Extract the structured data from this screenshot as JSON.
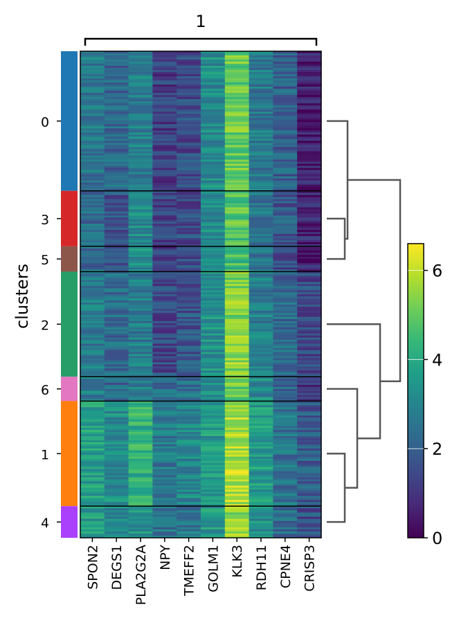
{
  "chart_data": {
    "type": "heatmap",
    "title": "",
    "ylabel": "clusters",
    "gene_group_label": "1",
    "genes": [
      "SPON2",
      "DEGS1",
      "PLA2G2A",
      "NPY",
      "TMEFF2",
      "GOLM1",
      "KLK3",
      "RDH11",
      "CPNE4",
      "CRISP3"
    ],
    "clusters": [
      {
        "label": "0",
        "color": "#1f77b4",
        "fraction": 0.287,
        "means": [
          2.6,
          2.2,
          2.8,
          1.2,
          1.5,
          3.2,
          5.0,
          2.7,
          2.0,
          0.5
        ]
      },
      {
        "label": "3",
        "color": "#d62728",
        "fraction": 0.114,
        "means": [
          2.3,
          1.8,
          3.2,
          1.4,
          1.6,
          3.1,
          4.8,
          2.6,
          1.8,
          0.6
        ]
      },
      {
        "label": "5",
        "color": "#8c564b",
        "fraction": 0.052,
        "means": [
          2.3,
          1.8,
          3.3,
          1.2,
          1.5,
          3.1,
          4.6,
          2.5,
          1.6,
          0.6
        ]
      },
      {
        "label": "2",
        "color": "#279e68",
        "fraction": 0.216,
        "means": [
          2.7,
          2.3,
          2.8,
          1.5,
          1.7,
          3.3,
          5.4,
          2.8,
          2.3,
          1.5
        ]
      },
      {
        "label": "6",
        "color": "#e377c2",
        "fraction": 0.05,
        "means": [
          2.8,
          2.2,
          2.6,
          2.3,
          2.4,
          3.3,
          5.0,
          3.2,
          2.3,
          0.9
        ]
      },
      {
        "label": "1",
        "color": "#ff7f0e",
        "fraction": 0.216,
        "means": [
          3.7,
          3.2,
          4.2,
          2.7,
          3.0,
          3.6,
          5.8,
          3.6,
          2.5,
          1.9
        ]
      },
      {
        "label": "4",
        "color": "#aa40fc",
        "fraction": 0.065,
        "means": [
          3.6,
          3.0,
          3.4,
          2.5,
          2.7,
          3.5,
          5.4,
          3.3,
          2.3,
          1.6
        ]
      }
    ],
    "colorbar": {
      "min": 0,
      "max": 6.6,
      "ticks": [
        0,
        2,
        4,
        6
      ],
      "colormap": "viridis"
    },
    "dendrogram_order": [
      "0",
      "3",
      "5",
      "2",
      "6",
      "1",
      "4"
    ]
  }
}
